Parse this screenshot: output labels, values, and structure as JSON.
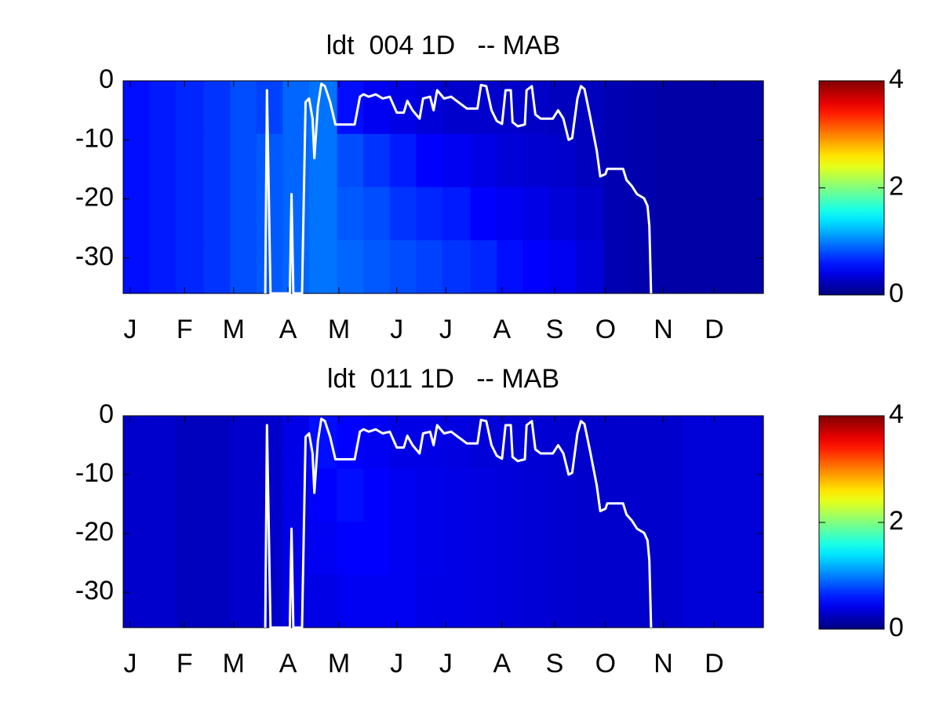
{
  "chart_data": [
    {
      "type": "heatmap",
      "title": "ldt  004 1D   -- MAB",
      "x_edges": [
        0,
        15,
        30,
        46,
        61,
        76,
        91,
        106,
        122,
        137,
        152,
        167,
        182,
        198,
        213,
        228,
        243,
        258,
        274,
        289,
        304,
        319,
        334,
        350,
        365
      ],
      "y_edges": [
        0,
        -9,
        -18,
        -27,
        -36
      ],
      "z": [
        [
          0.55,
          0.6,
          0.65,
          0.7,
          0.8,
          0.75,
          0.9,
          0.95,
          0.55,
          0.45,
          0.4,
          0.35,
          0.3,
          0.3,
          0.3,
          0.28,
          0.25,
          0.25,
          0.2,
          0.18,
          0.15,
          0.15,
          0.15,
          0.15
        ],
        [
          0.55,
          0.6,
          0.65,
          0.7,
          0.8,
          0.85,
          0.9,
          0.95,
          0.8,
          0.7,
          0.6,
          0.5,
          0.45,
          0.4,
          0.35,
          0.32,
          0.3,
          0.25,
          0.2,
          0.18,
          0.15,
          0.15,
          0.15,
          0.15
        ],
        [
          0.55,
          0.6,
          0.65,
          0.7,
          0.8,
          0.85,
          0.9,
          0.95,
          0.85,
          0.8,
          0.7,
          0.65,
          0.6,
          0.5,
          0.45,
          0.4,
          0.35,
          0.3,
          0.2,
          0.18,
          0.15,
          0.15,
          0.15,
          0.15
        ],
        [
          0.55,
          0.6,
          0.65,
          0.7,
          0.8,
          0.85,
          0.9,
          0.95,
          0.9,
          0.85,
          0.8,
          0.75,
          0.7,
          0.65,
          0.55,
          0.5,
          0.45,
          0.35,
          0.2,
          0.18,
          0.15,
          0.15,
          0.15,
          0.15
        ]
      ],
      "xlim": [
        0,
        365
      ],
      "ylim": [
        -36,
        0
      ],
      "xticks": [
        {
          "value": 4,
          "label": "J"
        },
        {
          "value": 35,
          "label": "F"
        },
        {
          "value": 63,
          "label": "M"
        },
        {
          "value": 94,
          "label": "A"
        },
        {
          "value": 123,
          "label": "M"
        },
        {
          "value": 156,
          "label": "J"
        },
        {
          "value": 184,
          "label": "J"
        },
        {
          "value": 216,
          "label": "A"
        },
        {
          "value": 246,
          "label": "S"
        },
        {
          "value": 275,
          "label": "O"
        },
        {
          "value": 308,
          "label": "N"
        },
        {
          "value": 337,
          "label": "D"
        }
      ],
      "yticks": [
        0,
        -10,
        -20,
        -30
      ],
      "colormap": "jet",
      "clim": [
        0,
        4
      ],
      "cticks": [
        0,
        2,
        4
      ],
      "line": {
        "color": "#ffffff",
        "x": [
          81,
          82,
          84,
          95,
          96,
          97,
          102,
          104,
          106,
          108,
          109,
          111,
          113,
          115,
          118,
          121,
          132,
          135,
          137,
          140,
          144,
          148,
          152,
          156,
          160,
          162,
          165,
          167,
          169,
          171,
          175,
          177,
          179,
          183,
          187,
          191,
          196,
          202,
          204,
          207,
          210,
          213,
          216,
          218,
          221,
          222,
          225,
          229,
          230,
          233,
          235,
          238,
          245,
          248,
          251,
          254,
          256,
          259,
          261,
          263,
          266,
          270,
          272,
          275,
          276,
          285,
          287,
          290,
          293,
          297,
          299,
          300,
          301
        ],
        "y": [
          -36,
          -1.6,
          -36,
          -36,
          -19.2,
          -36,
          -36,
          -3.6,
          -3,
          -6.4,
          -13.1,
          -4.3,
          -0.5,
          -0.9,
          -3.6,
          -7.4,
          -7.4,
          -2.7,
          -2.3,
          -2.7,
          -2.3,
          -3,
          -2.7,
          -5.4,
          -5.4,
          -3.4,
          -5,
          -5.7,
          -6.4,
          -3,
          -2.7,
          -5,
          -1.6,
          -3,
          -2.7,
          -3.6,
          -4.7,
          -4.7,
          -0.7,
          -0.9,
          -5,
          -6.8,
          -7.3,
          -1.6,
          -1.6,
          -7,
          -7.7,
          -7.4,
          -1.6,
          -0.9,
          -5.7,
          -6.4,
          -6.4,
          -5,
          -6.4,
          -10,
          -9.7,
          -3,
          -0.9,
          -1.4,
          -5.7,
          -11.8,
          -16.2,
          -15.8,
          -14.9,
          -14.9,
          -16.8,
          -17.8,
          -19.2,
          -19.9,
          -21.2,
          -24.6,
          -36
        ]
      }
    },
    {
      "type": "heatmap",
      "title": "ldt  011 1D   -- MAB",
      "x_edges": [
        0,
        15,
        30,
        46,
        61,
        76,
        91,
        106,
        122,
        137,
        152,
        167,
        182,
        198,
        213,
        228,
        243,
        258,
        274,
        289,
        304,
        319,
        334,
        350,
        365
      ],
      "y_edges": [
        0,
        -9,
        -18,
        -27,
        -36
      ],
      "z": [
        [
          0.3,
          0.3,
          0.25,
          0.25,
          0.3,
          0.3,
          0.4,
          0.55,
          0.5,
          0.45,
          0.4,
          0.4,
          0.38,
          0.35,
          0.35,
          0.33,
          0.32,
          0.3,
          0.3,
          0.3,
          0.3,
          0.35,
          0.35,
          0.35
        ],
        [
          0.3,
          0.3,
          0.25,
          0.25,
          0.3,
          0.3,
          0.4,
          0.5,
          0.55,
          0.5,
          0.45,
          0.42,
          0.4,
          0.38,
          0.36,
          0.34,
          0.32,
          0.3,
          0.3,
          0.3,
          0.3,
          0.35,
          0.35,
          0.35
        ],
        [
          0.3,
          0.3,
          0.25,
          0.25,
          0.3,
          0.3,
          0.4,
          0.45,
          0.5,
          0.5,
          0.45,
          0.42,
          0.4,
          0.38,
          0.36,
          0.34,
          0.32,
          0.3,
          0.3,
          0.3,
          0.3,
          0.35,
          0.35,
          0.35
        ],
        [
          0.3,
          0.3,
          0.25,
          0.25,
          0.3,
          0.3,
          0.4,
          0.4,
          0.45,
          0.45,
          0.45,
          0.4,
          0.4,
          0.38,
          0.36,
          0.34,
          0.32,
          0.3,
          0.3,
          0.3,
          0.3,
          0.35,
          0.35,
          0.35
        ]
      ],
      "xlim": [
        0,
        365
      ],
      "ylim": [
        -36,
        0
      ],
      "xticks": [
        {
          "value": 4,
          "label": "J"
        },
        {
          "value": 35,
          "label": "F"
        },
        {
          "value": 63,
          "label": "M"
        },
        {
          "value": 94,
          "label": "A"
        },
        {
          "value": 123,
          "label": "M"
        },
        {
          "value": 156,
          "label": "J"
        },
        {
          "value": 184,
          "label": "J"
        },
        {
          "value": 216,
          "label": "A"
        },
        {
          "value": 246,
          "label": "S"
        },
        {
          "value": 275,
          "label": "O"
        },
        {
          "value": 308,
          "label": "N"
        },
        {
          "value": 337,
          "label": "D"
        }
      ],
      "yticks": [
        0,
        -10,
        -20,
        -30
      ],
      "colormap": "jet",
      "clim": [
        0,
        4
      ],
      "cticks": [
        0,
        2,
        4
      ],
      "line": {
        "color": "#ffffff",
        "x": [
          81,
          82,
          84,
          95,
          96,
          97,
          102,
          104,
          106,
          108,
          109,
          111,
          113,
          115,
          118,
          121,
          132,
          135,
          137,
          140,
          144,
          148,
          152,
          156,
          160,
          162,
          165,
          167,
          169,
          171,
          175,
          177,
          179,
          183,
          187,
          191,
          196,
          202,
          204,
          207,
          210,
          213,
          216,
          218,
          221,
          222,
          225,
          229,
          230,
          233,
          235,
          238,
          245,
          248,
          251,
          254,
          256,
          259,
          261,
          263,
          266,
          270,
          272,
          275,
          276,
          285,
          287,
          290,
          293,
          297,
          299,
          300,
          301
        ],
        "y": [
          -36,
          -1.6,
          -36,
          -36,
          -19.2,
          -36,
          -36,
          -3.6,
          -3,
          -6.4,
          -13.1,
          -4.3,
          -0.5,
          -0.9,
          -3.6,
          -7.4,
          -7.4,
          -2.7,
          -2.3,
          -2.7,
          -2.3,
          -3,
          -2.7,
          -5.4,
          -5.4,
          -3.4,
          -5,
          -5.7,
          -6.4,
          -3,
          -2.7,
          -5,
          -1.6,
          -3,
          -2.7,
          -3.6,
          -4.7,
          -4.7,
          -0.7,
          -0.9,
          -5,
          -6.8,
          -7.3,
          -1.6,
          -1.6,
          -7,
          -7.7,
          -7.4,
          -1.6,
          -0.9,
          -5.7,
          -6.4,
          -6.4,
          -5,
          -6.4,
          -10,
          -9.7,
          -3,
          -0.9,
          -1.4,
          -5.7,
          -11.8,
          -16.2,
          -15.8,
          -14.9,
          -14.9,
          -16.8,
          -17.8,
          -19.2,
          -19.9,
          -21.2,
          -24.6,
          -36
        ]
      }
    }
  ]
}
